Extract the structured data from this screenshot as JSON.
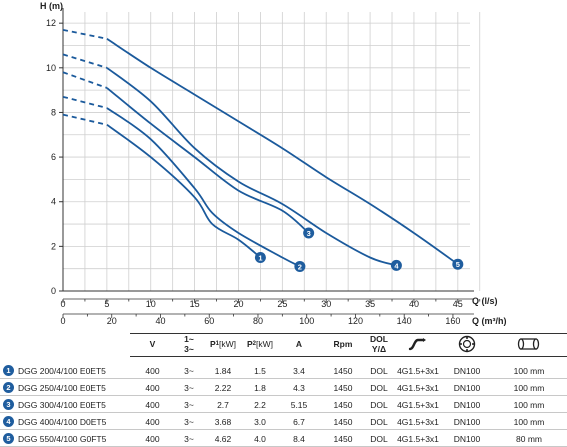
{
  "colors": {
    "curve": "#1b5a9c",
    "badge": "#1f5d9e",
    "axis": "#333333",
    "grid": "#cfcfcf"
  },
  "chart_data": {
    "type": "line",
    "ylabel": "H (m)",
    "xlabel": "Q (l/s)",
    "xlabel2": "Q (m³/h)",
    "xlim": [
      0,
      167
    ],
    "ylim": [
      0,
      12.5
    ],
    "y_ticks": [
      0,
      2,
      4,
      6,
      8,
      10,
      12
    ],
    "x_ticks": [
      0,
      5,
      10,
      15,
      20,
      25,
      30,
      35,
      40,
      45
    ],
    "x2_ticks": [
      0,
      20,
      40,
      60,
      80,
      100,
      120,
      140,
      160
    ],
    "x_tick_labels": [
      "0",
      "5",
      "10",
      "15",
      "20",
      "25",
      "30",
      "35",
      "40",
      "45"
    ],
    "x2_tick_labels": [
      "0",
      "20",
      "40",
      "60",
      "80",
      "100",
      "120",
      "140",
      "160"
    ],
    "y_tick_labels": [
      "0",
      "2",
      "4",
      "6",
      "8",
      "10",
      "12"
    ],
    "grid": true,
    "series": [
      {
        "name": "1",
        "dashed": [
          [
            0,
            7.9
          ],
          [
            5,
            7.45
          ]
        ],
        "points": [
          [
            5,
            7.45
          ],
          [
            10,
            6.0
          ],
          [
            15,
            4.2
          ],
          [
            17,
            3.0
          ],
          [
            20,
            2.3
          ],
          [
            22.5,
            1.5
          ]
        ]
      },
      {
        "name": "2",
        "dashed": [
          [
            0,
            8.7
          ],
          [
            5,
            8.2
          ]
        ],
        "points": [
          [
            5,
            8.2
          ],
          [
            10,
            6.8
          ],
          [
            15,
            4.6
          ],
          [
            17,
            3.5
          ],
          [
            20,
            2.6
          ],
          [
            25,
            1.5
          ],
          [
            27,
            1.1
          ]
        ]
      },
      {
        "name": "3",
        "dashed": [
          [
            0,
            9.8
          ],
          [
            5,
            9.1
          ]
        ],
        "points": [
          [
            5,
            9.1
          ],
          [
            10,
            7.5
          ],
          [
            15,
            6.0
          ],
          [
            20,
            4.5
          ],
          [
            25,
            3.6
          ],
          [
            28,
            2.6
          ]
        ]
      },
      {
        "name": "4",
        "dashed": [
          [
            0,
            10.6
          ],
          [
            5,
            10.0
          ]
        ],
        "points": [
          [
            5,
            10.0
          ],
          [
            10,
            8.5
          ],
          [
            15,
            6.4
          ],
          [
            20,
            4.9
          ],
          [
            25,
            3.9
          ],
          [
            30,
            2.6
          ],
          [
            35,
            1.5
          ],
          [
            38,
            1.15
          ]
        ]
      },
      {
        "name": "5",
        "dashed": [
          [
            0,
            11.7
          ],
          [
            5,
            11.3
          ]
        ],
        "points": [
          [
            5,
            11.3
          ],
          [
            10,
            10.0
          ],
          [
            15,
            8.8
          ],
          [
            20,
            7.6
          ],
          [
            25,
            6.4
          ],
          [
            30,
            5.1
          ],
          [
            35,
            3.9
          ],
          [
            40,
            2.6
          ],
          [
            45,
            1.2
          ]
        ]
      }
    ]
  },
  "table": {
    "headers": {
      "v": "V",
      "phase_top": "1~",
      "phase_bot": "3~",
      "p1": "P",
      "p1_sub": "1",
      "p1_unit": " [kW]",
      "p2": "P",
      "p2_sub": "2",
      "p2_unit": " [kW]",
      "a": "A",
      "rpm": "Rpm",
      "dol_top": "DOL",
      "dol_bot": "Y/Δ"
    },
    "rows": [
      {
        "n": "1",
        "model": "DGG 200/4/100 E0ET5",
        "v": "400",
        "phase": "3~",
        "p1": "1.84",
        "p2": "1.5",
        "a": "3.4",
        "rpm": "1450",
        "dol": "DOL",
        "cable": "4G1.5+3x1",
        "dn": "DN100",
        "size": "100 mm"
      },
      {
        "n": "2",
        "model": "DGG 250/4/100 E0ET5",
        "v": "400",
        "phase": "3~",
        "p1": "2.22",
        "p2": "1.8",
        "a": "4.3",
        "rpm": "1450",
        "dol": "DOL",
        "cable": "4G1.5+3x1",
        "dn": "DN100",
        "size": "100 mm"
      },
      {
        "n": "3",
        "model": "DGG 300/4/100 E0ET5",
        "v": "400",
        "phase": "3~",
        "p1": "2.7",
        "p2": "2.2",
        "a": "5.15",
        "rpm": "1450",
        "dol": "DOL",
        "cable": "4G1.5+3x1",
        "dn": "DN100",
        "size": "100 mm"
      },
      {
        "n": "4",
        "model": "DGG 400/4/100 D0ET5",
        "v": "400",
        "phase": "3~",
        "p1": "3.68",
        "p2": "3.0",
        "a": "6.7",
        "rpm": "1450",
        "dol": "DOL",
        "cable": "4G1.5+3x1",
        "dn": "DN100",
        "size": "100 mm"
      },
      {
        "n": "5",
        "model": "DGG 550/4/100 G0FT5",
        "v": "400",
        "phase": "3~",
        "p1": "4.62",
        "p2": "4.0",
        "a": "8.4",
        "rpm": "1450",
        "dol": "DOL",
        "cable": "4G1.5+3x1",
        "dn": "DN100",
        "size": "80 mm"
      }
    ]
  }
}
